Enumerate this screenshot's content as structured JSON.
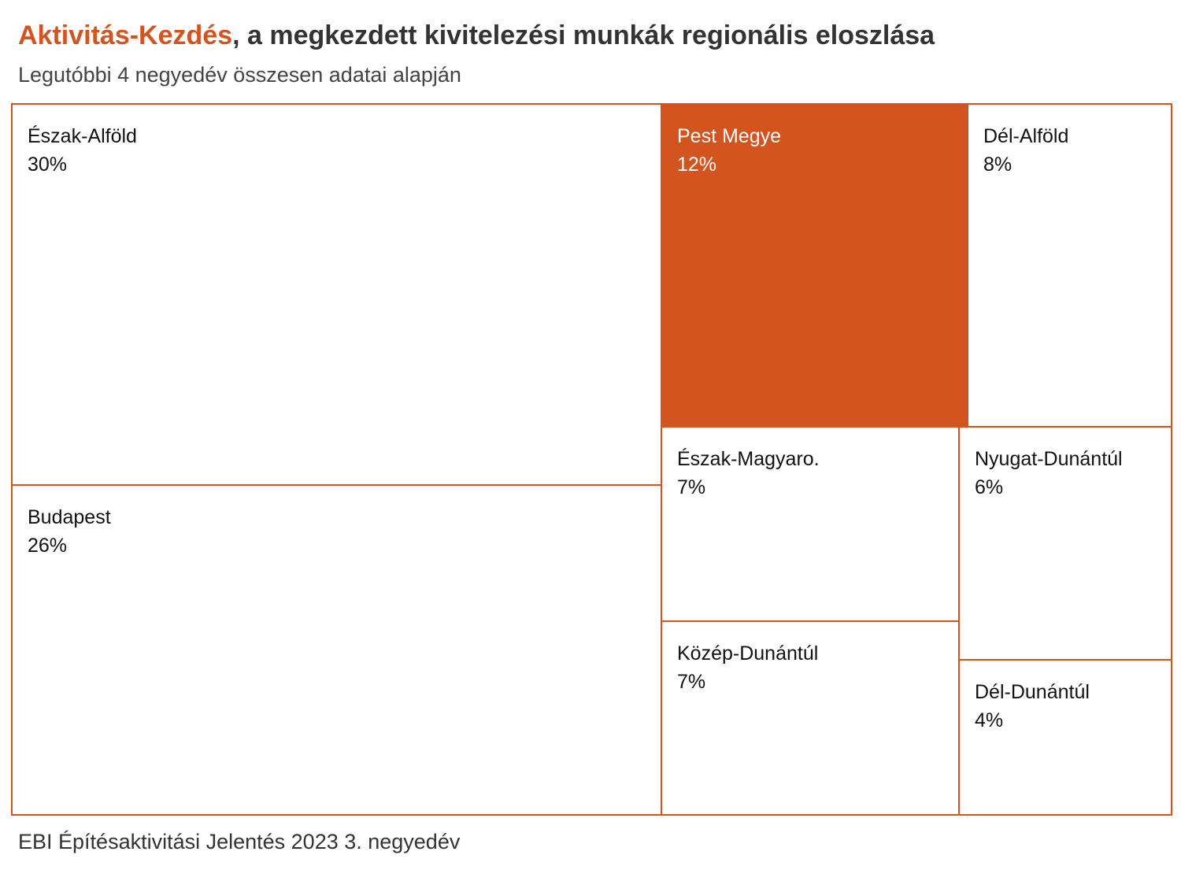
{
  "title": {
    "highlight": "Aktivitás-Kezdés",
    "rest": ", a megkezdett kivitelezési munkák regionális eloszlása"
  },
  "subtitle": "Legutóbbi 4 negyedév összesen adatai alapján",
  "source": "EBI Építésaktivitási Jelentés 2023 3. negyedév",
  "colors": {
    "accent": "#d4541f",
    "text": "#333333",
    "background": "#ffffff"
  },
  "chart_data": {
    "type": "treemap",
    "title": "Aktivitás-Kezdés, a megkezdett kivitelezési munkák regionális eloszlása",
    "subtitle": "Legutóbbi 4 negyedév összesen adatai alapján",
    "unit": "%",
    "highlighted": "Pest Megye",
    "items": [
      {
        "name": "Észak-Alföld",
        "value": 30,
        "label": "30%"
      },
      {
        "name": "Budapest",
        "value": 26,
        "label": "26%"
      },
      {
        "name": "Pest Megye",
        "value": 12,
        "label": "12%"
      },
      {
        "name": "Dél-Alföld",
        "value": 8,
        "label": "8%"
      },
      {
        "name": "Észak-Magyaro.",
        "value": 7,
        "label": "7%"
      },
      {
        "name": "Közép-Dunántúl",
        "value": 7,
        "label": "7%"
      },
      {
        "name": "Nyugat-Dunántúl",
        "value": 6,
        "label": "6%"
      },
      {
        "name": "Dél-Dunántúl",
        "value": 4,
        "label": "4%"
      }
    ]
  }
}
